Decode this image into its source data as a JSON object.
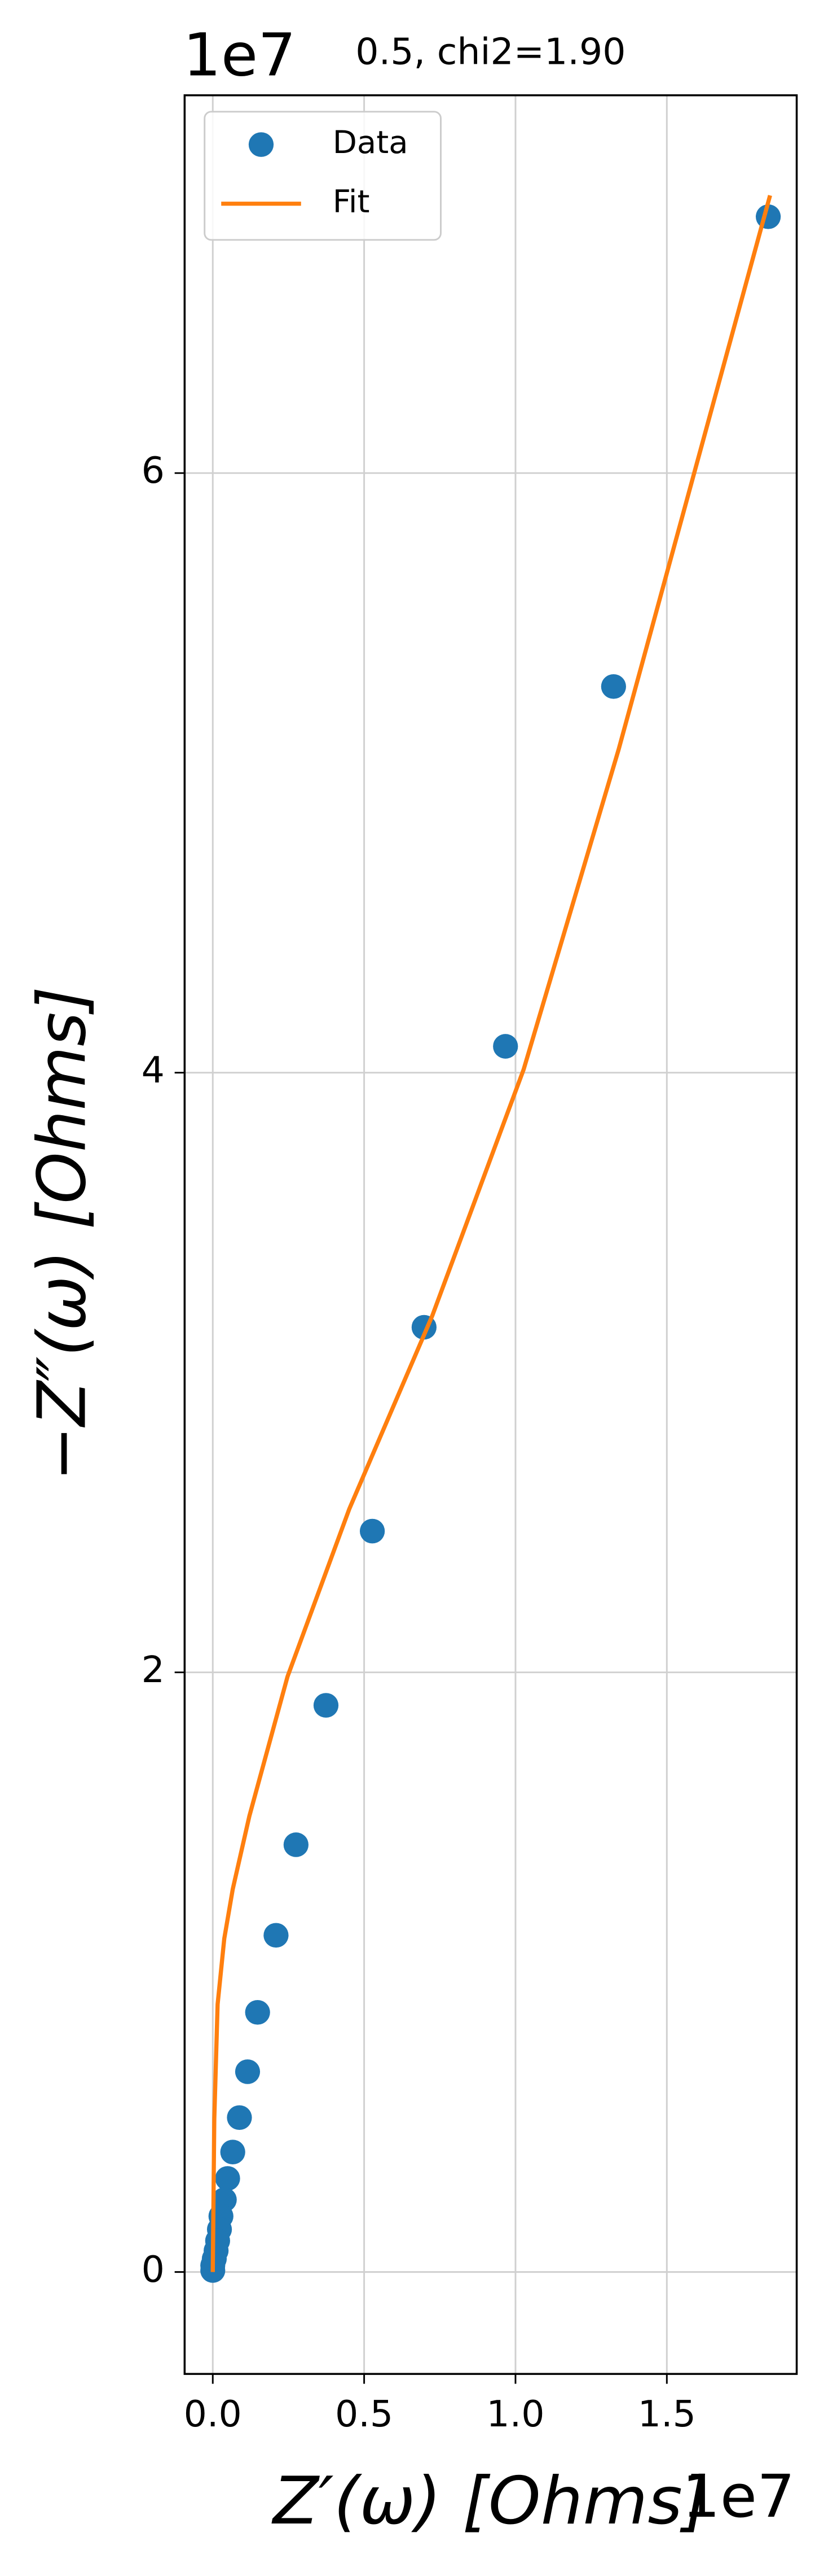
{
  "chart_data": {
    "type": "scatter",
    "title": "0.5, chi2=1.90",
    "x_label": "Z′(ω) [Ohms]",
    "y_label": "−Z″(ω) [Ohms]",
    "x_offset_label": "1e7",
    "y_offset_label": "1e7",
    "xlim": [
      -0.093,
      1.929
    ],
    "ylim": [
      -0.34,
      7.26
    ],
    "xticks": [
      {
        "value": 0,
        "label": "0.0"
      },
      0.5,
      {
        "value": 1,
        "label": "1.0"
      },
      1.5
    ],
    "yticks": [
      0,
      2,
      4,
      6
    ],
    "grid": true,
    "legend": "upper left",
    "series": [
      {
        "name": "Data",
        "mode": "markers",
        "color": "#1f77b4",
        "x": [
          1.835,
          1.324,
          0.967,
          0.698,
          0.527,
          0.374,
          0.275,
          0.209,
          0.148,
          0.115,
          0.088,
          0.066,
          0.049,
          0.038,
          0.027,
          0.022,
          0.016,
          0.011,
          0.005,
          0.0,
          0.0
        ],
        "values": [
          6.855,
          5.288,
          4.088,
          3.151,
          2.471,
          1.89,
          1.425,
          1.123,
          0.866,
          0.668,
          0.515,
          0.4,
          0.312,
          0.241,
          0.186,
          0.142,
          0.104,
          0.071,
          0.044,
          0.022,
          0.005
        ]
      },
      {
        "name": "Fit",
        "mode": "lines",
        "color": "#ff7f0e",
        "x": [
          0.0,
          0.005,
          0.016,
          0.038,
          0.066,
          0.121,
          0.247,
          0.451,
          0.725,
          1.027,
          1.341,
          1.841
        ],
        "values": [
          0.0,
          0.51,
          0.893,
          1.112,
          1.277,
          1.521,
          1.986,
          2.545,
          3.189,
          4.011,
          5.079,
          6.926
        ]
      }
    ]
  }
}
